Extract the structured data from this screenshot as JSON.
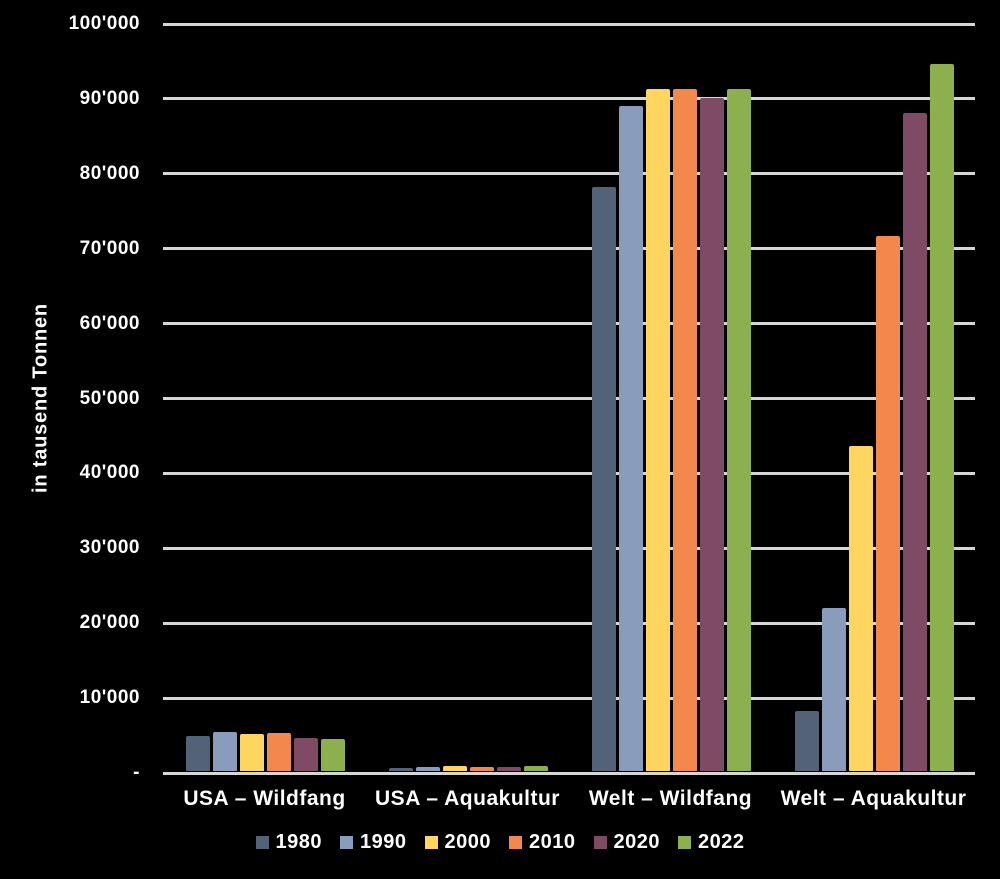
{
  "chart": {
    "background_color": "#000000",
    "text_color": "#ffffff",
    "gridline_color": "#d6d6d6"
  },
  "chart_data": {
    "type": "bar",
    "title": "",
    "ylabel": "in tausend Tonnen",
    "xlabel": "",
    "ylim": [
      0,
      100000
    ],
    "grid": true,
    "legend_position": "bottom",
    "y_tick_labels": [
      "100'000",
      "90'000",
      "80'000",
      "70'000",
      "60'000",
      "50'000",
      "40'000",
      "30'000",
      "20'000",
      "10'000",
      "-"
    ],
    "categories": [
      "USA – Wildfang",
      "USA – Aquakultur",
      "Welt – Wildfang",
      "Welt – Aquakultur"
    ],
    "series": [
      {
        "name": "1980",
        "color": "#546277",
        "values": [
          4700,
          400,
          78000,
          8000
        ]
      },
      {
        "name": "1990",
        "color": "#8A9CBC",
        "values": [
          5200,
          500,
          88800,
          21800
        ]
      },
      {
        "name": "2000",
        "color": "#FDD55F",
        "values": [
          4900,
          650,
          91000,
          43400
        ]
      },
      {
        "name": "2010",
        "color": "#F2884C",
        "values": [
          5100,
          500,
          91100,
          71400
        ]
      },
      {
        "name": "2020",
        "color": "#7F4A63",
        "values": [
          4350,
          500,
          89800,
          87800
        ]
      },
      {
        "name": "2022",
        "color": "#8CB04D",
        "values": [
          4250,
          650,
          91000,
          94400
        ]
      }
    ]
  }
}
